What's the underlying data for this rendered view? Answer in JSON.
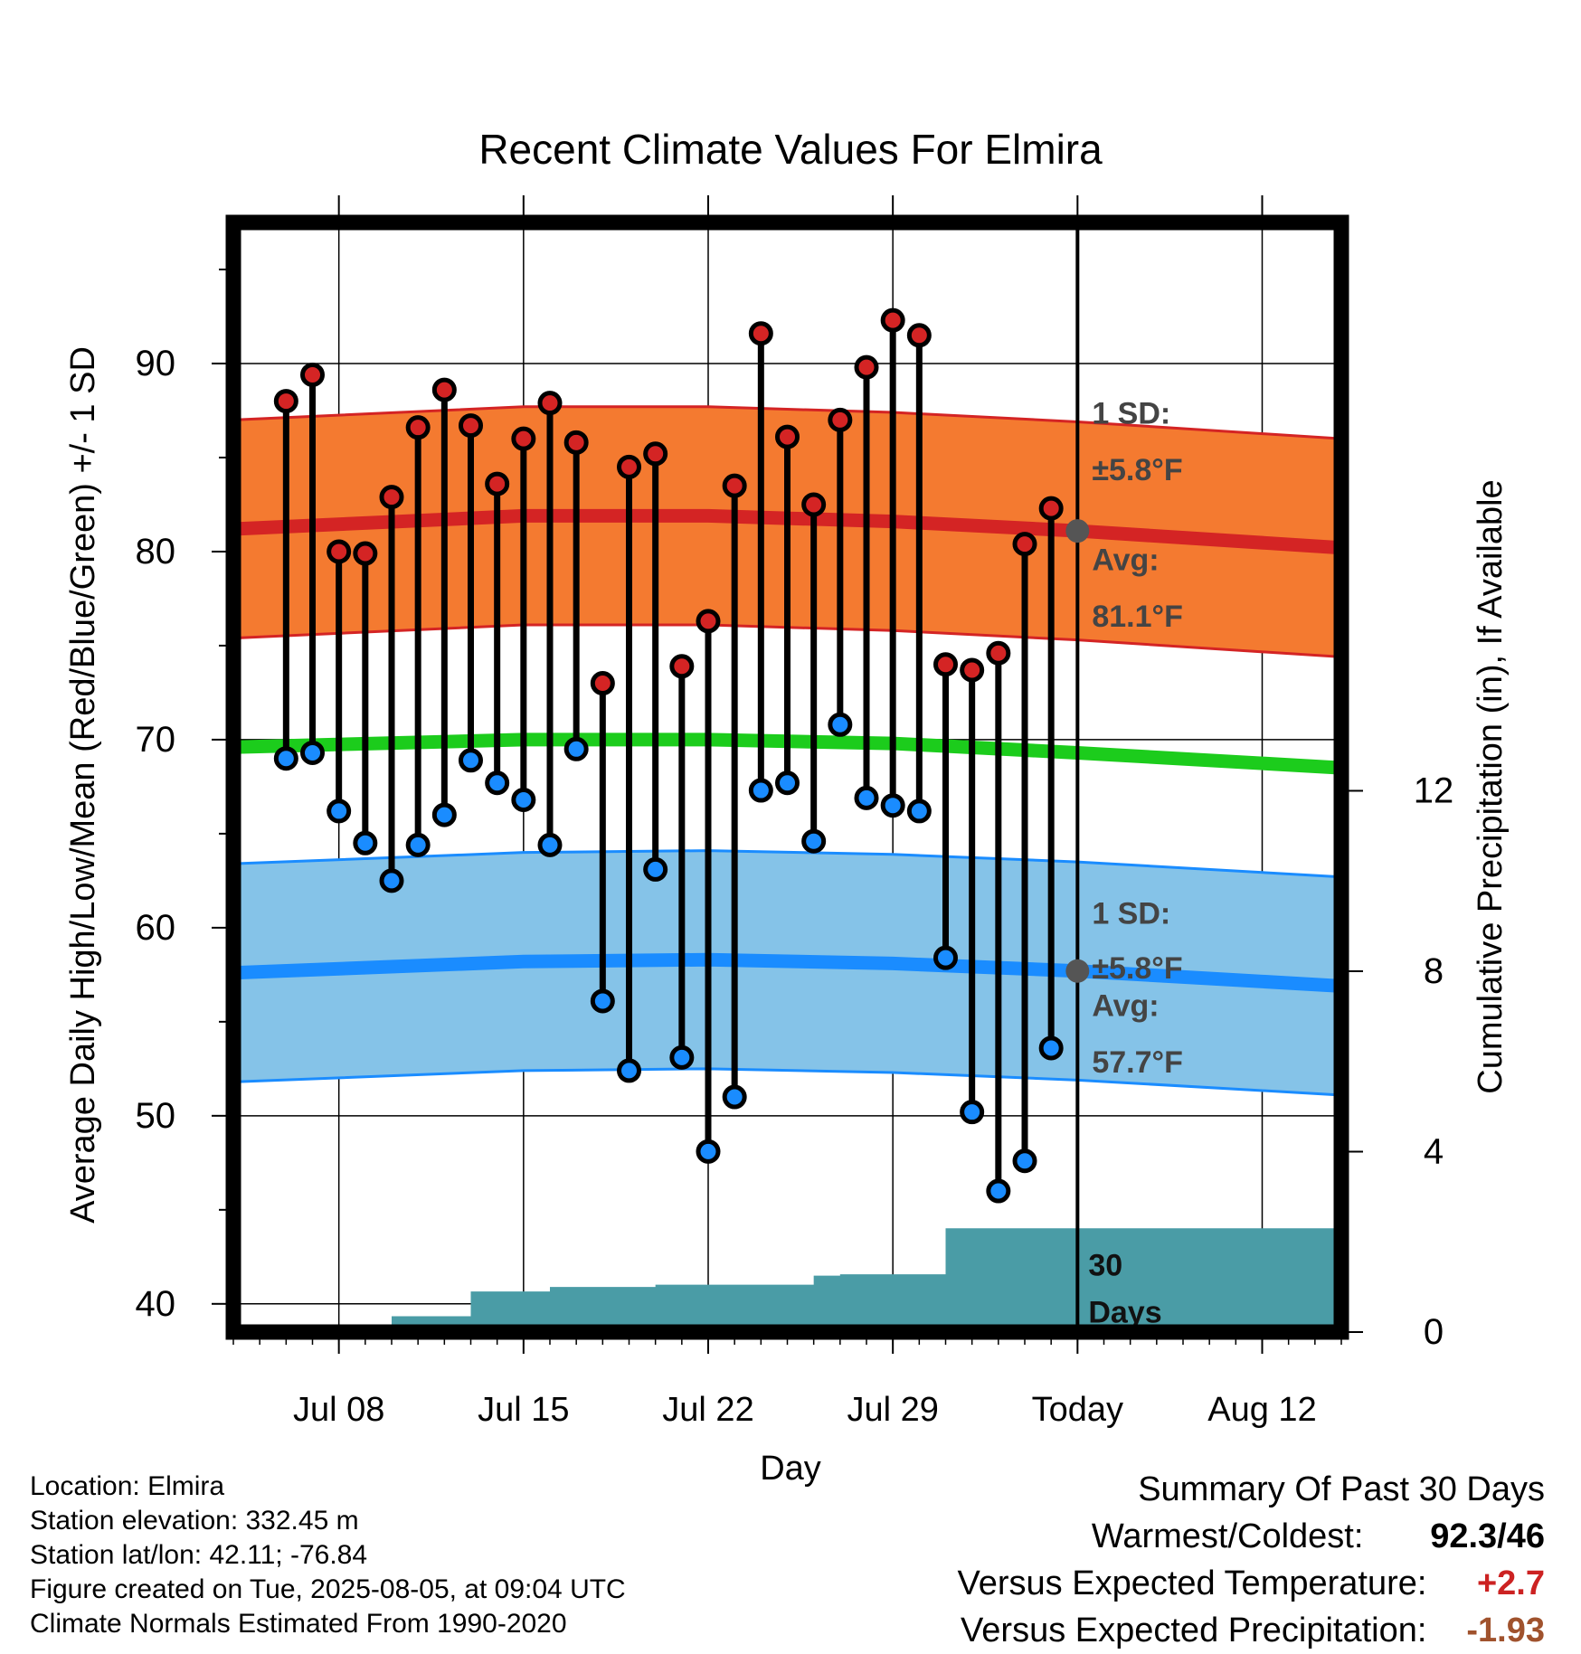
{
  "chart_data": {
    "type": "line",
    "title": "Recent Climate Values For Elmira",
    "xlabel": "Day",
    "ylabel": "Average Daily High/Low/Mean (Red/Blue/Green) +/- 1 SD",
    "y2label": "Cumulative Precipitation (in), If Available",
    "ylim": [
      38.5,
      97.5
    ],
    "y2lim": [
      0,
      24.6
    ],
    "xlim": [
      "2025-07-04",
      "2025-08-15"
    ],
    "grid": true,
    "yticks": [
      40,
      50,
      60,
      70,
      80,
      90
    ],
    "y2ticks": [
      0,
      4,
      8,
      12
    ],
    "xticks": [
      {
        "date": "2025-07-08",
        "label": "Jul 08"
      },
      {
        "date": "2025-07-15",
        "label": "Jul 15"
      },
      {
        "date": "2025-07-22",
        "label": "Jul 22"
      },
      {
        "date": "2025-07-29",
        "label": "Jul 29"
      },
      {
        "date": "2025-08-05",
        "label": "Today"
      },
      {
        "date": "2025-08-12",
        "label": "Aug 12"
      }
    ],
    "today": "2025-08-05",
    "observed": {
      "dates": [
        "2025-07-06",
        "2025-07-07",
        "2025-07-08",
        "2025-07-09",
        "2025-07-10",
        "2025-07-11",
        "2025-07-12",
        "2025-07-13",
        "2025-07-14",
        "2025-07-15",
        "2025-07-16",
        "2025-07-17",
        "2025-07-18",
        "2025-07-19",
        "2025-07-20",
        "2025-07-21",
        "2025-07-22",
        "2025-07-23",
        "2025-07-24",
        "2025-07-25",
        "2025-07-26",
        "2025-07-27",
        "2025-07-28",
        "2025-07-29",
        "2025-07-30",
        "2025-07-31",
        "2025-08-01",
        "2025-08-02",
        "2025-08-03",
        "2025-08-04"
      ],
      "high": [
        88.0,
        89.4,
        80.0,
        79.9,
        82.9,
        86.6,
        88.6,
        86.7,
        83.6,
        86.0,
        87.9,
        85.8,
        73.0,
        84.5,
        85.2,
        73.9,
        76.3,
        83.5,
        91.6,
        86.1,
        82.5,
        87.0,
        89.8,
        92.3,
        91.5,
        74.0,
        73.7,
        74.6,
        80.4,
        82.3
      ],
      "low": [
        69.0,
        69.3,
        66.2,
        64.5,
        62.5,
        64.4,
        66.0,
        68.9,
        67.7,
        66.8,
        64.4,
        69.5,
        56.1,
        52.4,
        63.1,
        53.1,
        48.1,
        51.0,
        67.3,
        67.7,
        64.6,
        70.8,
        66.9,
        66.5,
        66.2,
        58.4,
        50.2,
        46.0,
        47.6,
        53.6
      ]
    },
    "series": [
      {
        "name": "High",
        "color": "#d42424",
        "band_color": "#f47a30",
        "dates": [
          "2025-07-04",
          "2025-07-15",
          "2025-07-22",
          "2025-07-29",
          "2025-08-05",
          "2025-08-15"
        ],
        "mean": [
          81.2,
          81.9,
          81.9,
          81.6,
          81.1,
          80.2
        ],
        "sd": 5.8
      },
      {
        "name": "Mean",
        "color": "#1ccc1c",
        "dates": [
          "2025-07-04",
          "2025-07-15",
          "2025-07-22",
          "2025-07-29",
          "2025-08-05",
          "2025-08-15"
        ],
        "mean": [
          69.6,
          70.0,
          70.0,
          69.8,
          69.3,
          68.5
        ]
      },
      {
        "name": "Low",
        "color": "#1a8cff",
        "band_color": "#85c3e8",
        "dates": [
          "2025-07-04",
          "2025-07-15",
          "2025-07-22",
          "2025-07-29",
          "2025-08-05",
          "2025-08-15"
        ],
        "mean": [
          57.6,
          58.2,
          58.3,
          58.1,
          57.7,
          56.9
        ],
        "sd": 5.8
      }
    ],
    "precip": {
      "color": "#4a9ca6",
      "dates": [
        "2025-07-09",
        "2025-07-10",
        "2025-07-11",
        "2025-07-12",
        "2025-07-13",
        "2025-07-14",
        "2025-07-15",
        "2025-07-16",
        "2025-07-17",
        "2025-07-18",
        "2025-07-19",
        "2025-07-20",
        "2025-07-21",
        "2025-07-22",
        "2025-07-23",
        "2025-07-24",
        "2025-07-25",
        "2025-07-26",
        "2025-07-27",
        "2025-07-28",
        "2025-07-29",
        "2025-07-30",
        "2025-07-31",
        "2025-08-01",
        "2025-08-02",
        "2025-08-03",
        "2025-08-04",
        "2025-08-05"
      ],
      "values": [
        0,
        0.35,
        0.35,
        0.35,
        0.9,
        0.9,
        0.9,
        1.0,
        1.0,
        1.0,
        1.0,
        1.05,
        1.05,
        1.05,
        1.05,
        1.05,
        1.05,
        1.25,
        1.28,
        1.28,
        1.28,
        1.28,
        2.3,
        2.3,
        2.3,
        2.3,
        2.3,
        2.3
      ]
    },
    "annotations": {
      "high_sd": {
        "line1": "1 SD:",
        "line2": "±5.8°F"
      },
      "high_avg": {
        "line1": "Avg:",
        "line2": "81.1°F"
      },
      "low_sd": {
        "line1": "1 SD:",
        "line2": "±5.8°F"
      },
      "low_avg": {
        "line1": "Avg:",
        "line2": "57.7°F"
      },
      "precip_window": {
        "line1": "30",
        "line2": "Days"
      }
    }
  },
  "info": {
    "location": "Location: Elmira",
    "elevation": "Station elevation: 332.45 m",
    "latlon": "Station lat/lon: 42.11; -76.84",
    "created": "Figure created on Tue, 2025-08-05, at 09:04 UTC",
    "normals": "Climate Normals Estimated From 1990-2020"
  },
  "summary": {
    "title": "Summary Of Past 30 Days",
    "warm_cold_label": "Warmest/Coldest:",
    "warmest": "92.3",
    "coldest": "/46",
    "temp_label": "Versus Expected Temperature:",
    "temp_value": "+2.7",
    "temp_color": "#cc2222",
    "precip_label": "Versus Expected Precipitation:",
    "precip_value": "-1.93",
    "precip_color": "#a0522d"
  }
}
